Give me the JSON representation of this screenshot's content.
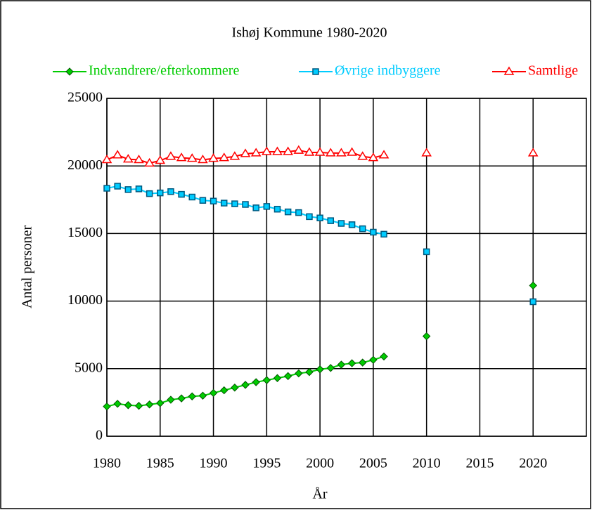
{
  "chart_data": {
    "type": "line",
    "title": "Ishøj Kommune 1980-2020",
    "x_label": "År",
    "y_label": "Antal personer",
    "x": [
      1980,
      1981,
      1982,
      1983,
      1984,
      1985,
      1986,
      1987,
      1988,
      1989,
      1990,
      1991,
      1992,
      1993,
      1994,
      1995,
      1996,
      1997,
      1998,
      1999,
      2000,
      2001,
      2002,
      2003,
      2004,
      2005,
      2006,
      2007,
      2008,
      2009,
      2010,
      2011,
      2012,
      2013,
      2014,
      2015,
      2016,
      2017,
      2018,
      2019,
      2020
    ],
    "series": [
      {
        "name": "Indvandrere/efterkommere",
        "color": "#00cc00",
        "marker": "diamond",
        "values": [
          2200,
          2400,
          2300,
          2250,
          2350,
          2450,
          2700,
          2800,
          2950,
          3000,
          3200,
          3400,
          3600,
          3800,
          4000,
          4150,
          4300,
          4450,
          4650,
          4750,
          4950,
          5050,
          5300,
          5400,
          5450,
          5650,
          5900,
          null,
          null,
          null,
          7400,
          null,
          null,
          null,
          null,
          null,
          null,
          null,
          null,
          null,
          11150
        ]
      },
      {
        "name": "Øvrige indbyggere",
        "color": "#00ccff",
        "marker": "square",
        "values": [
          18350,
          18500,
          18250,
          18300,
          17950,
          18000,
          18100,
          17900,
          17700,
          17450,
          17400,
          17250,
          17200,
          17150,
          16900,
          17000,
          16800,
          16600,
          16550,
          16250,
          16150,
          15950,
          15750,
          15650,
          15350,
          15100,
          14950,
          null,
          null,
          null,
          13650,
          null,
          null,
          null,
          null,
          null,
          null,
          null,
          null,
          null,
          9950
        ]
      },
      {
        "name": "Samtlige",
        "color": "#ff0000",
        "marker": "triangle",
        "values": [
          20450,
          20800,
          20500,
          20450,
          20200,
          20400,
          20700,
          20600,
          20550,
          20450,
          20550,
          20600,
          20700,
          20900,
          20950,
          21050,
          21050,
          21050,
          21150,
          21000,
          21000,
          20950,
          20950,
          21000,
          20700,
          20600,
          20800,
          null,
          null,
          null,
          20950,
          null,
          null,
          null,
          null,
          null,
          null,
          null,
          null,
          null,
          20950
        ]
      }
    ],
    "xlim": [
      1980,
      2025
    ],
    "xticks": [
      1980,
      1985,
      1990,
      1995,
      2000,
      2005,
      2010,
      2015,
      2020
    ],
    "ylim": [
      0,
      25000
    ],
    "yticks": [
      0,
      5000,
      10000,
      15000,
      20000,
      25000
    ],
    "grid": true,
    "legend": "top"
  }
}
